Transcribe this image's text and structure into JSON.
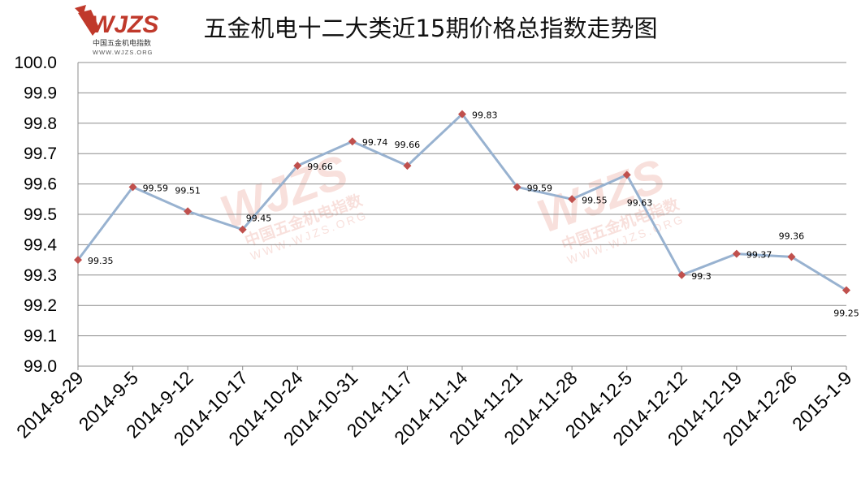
{
  "logo": {
    "mark": "WJZS",
    "name": "中国五金机电指数",
    "url": "WWW.WJZS.ORG"
  },
  "watermark": {
    "mark": "WJZS",
    "name": "中国五金机电指数",
    "url": "WWW.WJZS.ORG"
  },
  "chart_data": {
    "type": "line",
    "title": "五金机电十二大类近15期价格总指数走势图",
    "xlabel": "",
    "ylabel": "",
    "categories": [
      "2014-8-29",
      "2014-9-5",
      "2014-9-12",
      "2014-10-17",
      "2014-10-24",
      "2014-10-31",
      "2014-11-7",
      "2014-11-14",
      "2014-11-21",
      "2014-11-28",
      "2014-12-5",
      "2014-12-12",
      "2014-12-19",
      "2014-12-26",
      "2015-1-9"
    ],
    "values": [
      99.35,
      99.59,
      99.51,
      99.45,
      99.66,
      99.74,
      99.66,
      99.83,
      99.59,
      99.55,
      99.63,
      99.3,
      99.37,
      99.36,
      99.25
    ],
    "value_labels": [
      "99.35",
      "99.59",
      "99.51",
      "99.45",
      "99.66",
      "99.74",
      "99.66",
      "99.83",
      "99.59",
      "99.55",
      "99.63",
      "99.3",
      "99.37",
      "99.36",
      "99.25"
    ],
    "ylim": [
      99.0,
      100.0
    ],
    "yticks": [
      "99.0",
      "99.1",
      "99.2",
      "99.3",
      "99.4",
      "99.5",
      "99.6",
      "99.7",
      "99.8",
      "99.9",
      "100.0"
    ],
    "grid": true,
    "legend": "none",
    "line_color": "#98b2d0",
    "marker_color": "#c0504d",
    "watermark_color": "#f4c8c0"
  }
}
